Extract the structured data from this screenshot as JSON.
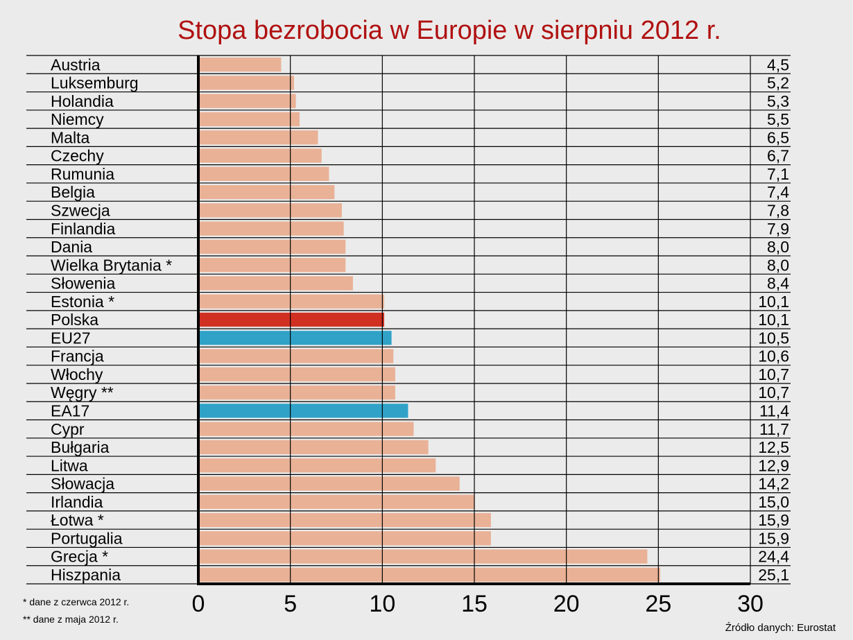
{
  "chart_data": {
    "type": "bar",
    "orientation": "horizontal",
    "title": "Stopa bezrobocia w Europie w sierpniu 2012 r.",
    "categories": [
      "Austria",
      "Luksemburg",
      "Holandia",
      "Niemcy",
      "Malta",
      "Czechy",
      "Rumunia",
      "Belgia",
      "Szwecja",
      "Finlandia",
      "Dania",
      "Wielka Brytania *",
      "Słowenia",
      "Estonia *",
      "Polska",
      "EU27",
      "Francja",
      "Włochy",
      "Węgry **",
      "EA17",
      "Cypr",
      "Bułgaria",
      "Litwa",
      "Słowacja",
      "Irlandia",
      "Łotwa *",
      "Portugalia",
      "Grecja *",
      "Hiszpania"
    ],
    "values": [
      4.5,
      5.2,
      5.3,
      5.5,
      6.5,
      6.7,
      7.1,
      7.4,
      7.8,
      7.9,
      8.0,
      8.0,
      8.4,
      10.1,
      10.1,
      10.5,
      10.6,
      10.7,
      10.7,
      11.4,
      11.7,
      12.5,
      12.9,
      14.2,
      15.0,
      15.9,
      15.9,
      24.4,
      25.1
    ],
    "value_labels": [
      "4,5",
      "5,2",
      "5,3",
      "5,5",
      "6,5",
      "6,7",
      "7,1",
      "7,4",
      "7,8",
      "7,9",
      "8,0",
      "8,0",
      "8,4",
      "10,1",
      "10,1",
      "10,5",
      "10,6",
      "10,7",
      "10,7",
      "11,4",
      "11,7",
      "12,5",
      "12,9",
      "14,2",
      "15,0",
      "15,9",
      "15,9",
      "24,4",
      "25,1"
    ],
    "xlim": [
      0,
      30
    ],
    "xticks": [
      "0",
      "5",
      "10",
      "15",
      "20",
      "25",
      "30"
    ],
    "grid": true,
    "colors": {
      "default": "#e8ab8e",
      "highlight": {
        "Polska": "#cc2010",
        "EU27": "#1f9bc4",
        "EA17": "#1f9bc4"
      },
      "title": "#b01010"
    },
    "footnotes": [
      "* dane z czerwca 2012 r.",
      "** dane z maja 2012 r."
    ],
    "source": "Źródło danych: Eurostat"
  }
}
